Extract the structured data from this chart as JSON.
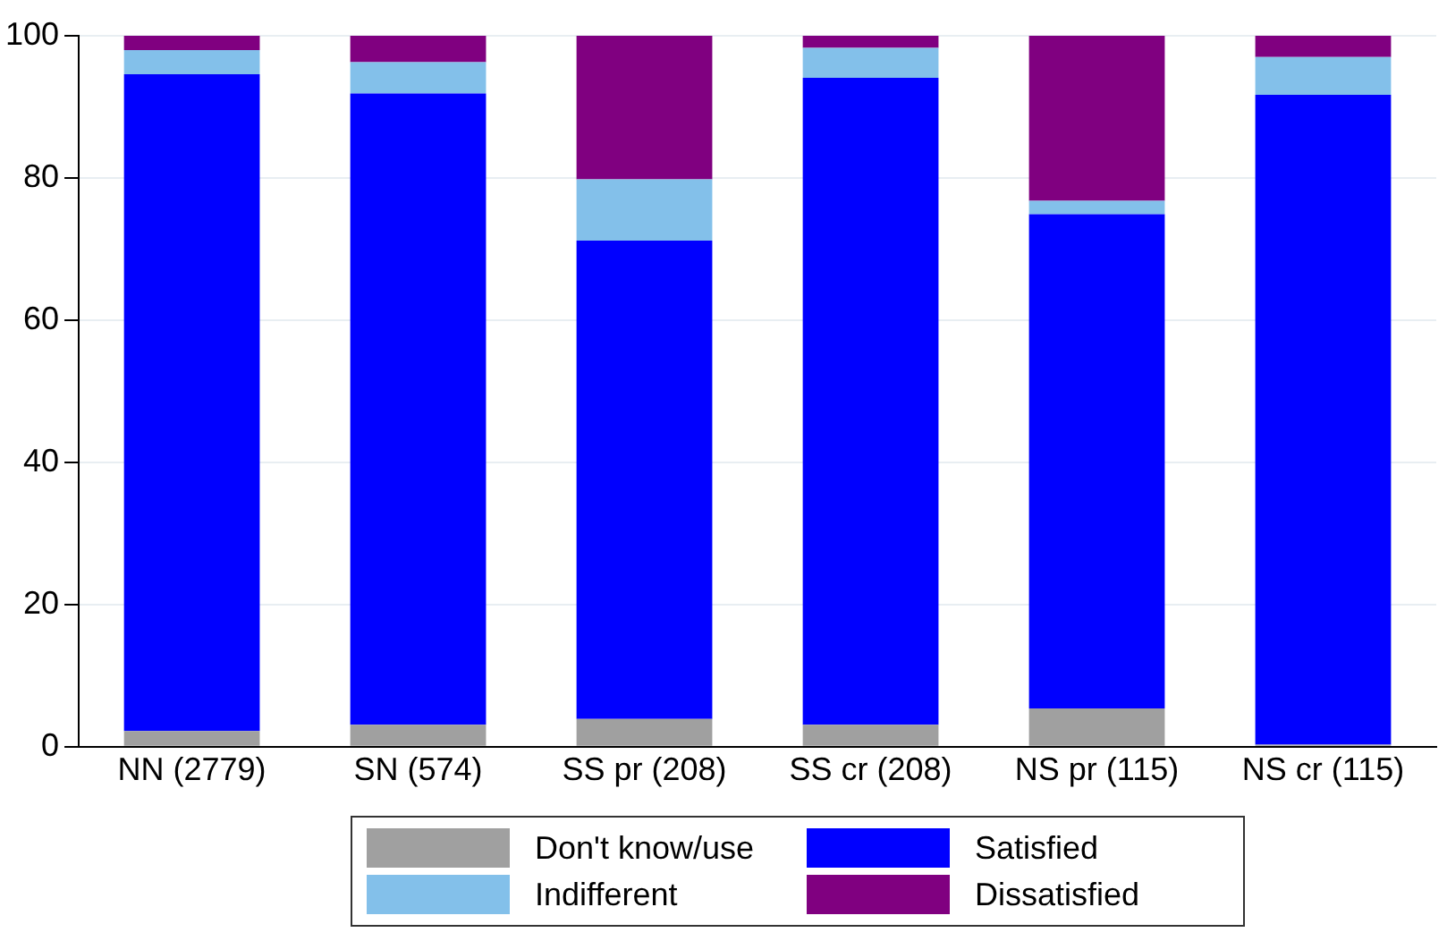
{
  "chart_data": {
    "type": "bar",
    "stacked": true,
    "categories": [
      "NN (2779)",
      "SN (574)",
      "SS pr (208)",
      "SS cr (208)",
      "NS pr (115)",
      "NS cr (115)"
    ],
    "series": [
      {
        "name": "Don't know/use",
        "color": "#a0a0a0",
        "values": [
          2.2,
          3.1,
          3.9,
          3.1,
          5.4,
          0.3
        ]
      },
      {
        "name": "Satisfied",
        "color": "#0000ff",
        "values": [
          92.4,
          88.8,
          67.3,
          91.0,
          69.5,
          91.4
        ]
      },
      {
        "name": "Indifferent",
        "color": "#83c0ea",
        "values": [
          3.4,
          4.4,
          8.6,
          4.2,
          1.9,
          5.3
        ]
      },
      {
        "name": "Dissatisfied",
        "color": "#800080",
        "values": [
          2.0,
          3.7,
          20.2,
          1.7,
          23.2,
          3.0
        ]
      }
    ],
    "ylim": [
      0,
      100
    ],
    "yticks": [
      0,
      20,
      40,
      60,
      80,
      100
    ],
    "grid": "y",
    "legend": "bottom"
  }
}
